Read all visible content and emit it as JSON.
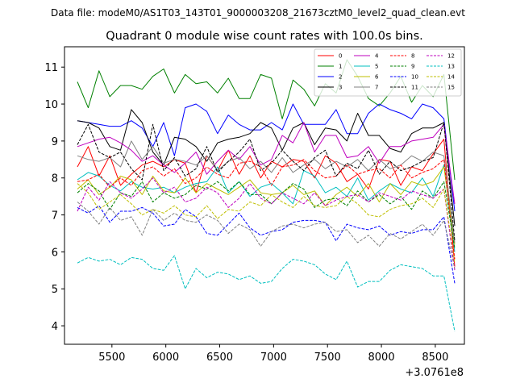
{
  "chart_data": {
    "type": "line",
    "suptitle": "Data file: modeM0/AS1T03_143T01_9000003208_21673cztM0_level2_quad_clean.evt",
    "title": "Quadrant 0 module wise count rates with 100.0s bins.",
    "xlabel": "",
    "ylabel": "",
    "x_offset_label": "+3.0761e8",
    "xlim": [
      5060,
      8770
    ],
    "ylim": [
      3.5,
      11.55
    ],
    "x_ticks": [
      5500,
      6000,
      6500,
      7000,
      7500,
      8000,
      8500
    ],
    "y_ticks": [
      4,
      5,
      6,
      7,
      8,
      9,
      10,
      11
    ],
    "x": [
      5180,
      5280,
      5380,
      5480,
      5580,
      5680,
      5780,
      5880,
      5980,
      6080,
      6180,
      6280,
      6380,
      6480,
      6580,
      6680,
      6780,
      6880,
      6980,
      7080,
      7180,
      7280,
      7380,
      7480,
      7580,
      7680,
      7780,
      7880,
      7980,
      8080,
      8180,
      8280,
      8380,
      8480,
      8580,
      8680
    ],
    "legend_location": "upper right",
    "series": [
      {
        "name": "0",
        "color": "#ff0000",
        "dash": "solid",
        "values": [
          8.3,
          8.85,
          8.05,
          8.6,
          7.8,
          8.1,
          8.35,
          8.45,
          8.3,
          8.5,
          8.4,
          7.6,
          8.6,
          8.2,
          8.75,
          8.1,
          8.6,
          8.0,
          8.45,
          8.3,
          8.5,
          8.45,
          8.0,
          8.6,
          8.4,
          7.9,
          8.1,
          7.7,
          8.5,
          8.45,
          7.8,
          8.3,
          8.2,
          8.65,
          9.05,
          5.6
        ]
      },
      {
        "name": "1",
        "color": "#008000",
        "dash": "solid",
        "values": [
          10.6,
          9.9,
          10.9,
          10.2,
          10.5,
          10.5,
          10.4,
          10.75,
          10.95,
          10.3,
          10.8,
          10.55,
          10.6,
          10.3,
          10.7,
          10.15,
          10.15,
          10.8,
          10.7,
          9.6,
          10.65,
          10.4,
          9.95,
          10.55,
          10.3,
          11.2,
          10.75,
          10.15,
          9.95,
          10.3,
          10.75,
          10.05,
          10.5,
          10.2,
          10.8,
          7.95
        ]
      },
      {
        "name": "2",
        "color": "#0000ff",
        "dash": "solid",
        "values": [
          9.55,
          9.5,
          9.45,
          9.4,
          9.4,
          9.55,
          9.35,
          8.85,
          9.5,
          8.6,
          9.9,
          10.0,
          9.8,
          9.2,
          9.7,
          9.45,
          9.3,
          9.3,
          9.5,
          9.3,
          10.0,
          9.45,
          9.45,
          9.45,
          9.85,
          9.2,
          9.2,
          9.75,
          10.0,
          9.85,
          9.75,
          9.6,
          10.0,
          9.9,
          9.6,
          7.1
        ]
      },
      {
        "name": "3",
        "color": "#000000",
        "dash": "solid",
        "values": [
          9.55,
          9.5,
          9.35,
          8.85,
          8.75,
          9.85,
          9.5,
          8.7,
          8.35,
          9.1,
          9.05,
          8.85,
          8.45,
          8.95,
          9.05,
          9.1,
          9.2,
          9.5,
          9.35,
          8.75,
          9.35,
          9.5,
          8.9,
          9.35,
          9.3,
          9.0,
          9.75,
          9.15,
          9.15,
          8.8,
          8.7,
          9.2,
          9.35,
          9.35,
          9.5,
          6.7
        ]
      },
      {
        "name": "4",
        "color": "#bf00bf",
        "dash": "solid",
        "values": [
          8.85,
          8.95,
          9.05,
          9.1,
          8.95,
          8.75,
          8.45,
          8.6,
          8.35,
          8.15,
          8.4,
          8.7,
          8.1,
          8.45,
          8.75,
          8.5,
          8.85,
          8.35,
          8.5,
          9.15,
          8.95,
          9.5,
          8.7,
          9.15,
          9.15,
          8.55,
          8.6,
          8.85,
          8.4,
          8.85,
          8.85,
          9.0,
          9.05,
          9.1,
          9.45,
          7.3
        ]
      },
      {
        "name": "5",
        "color": "#00bfbf",
        "dash": "solid",
        "values": [
          7.95,
          8.15,
          8.05,
          7.8,
          7.65,
          7.9,
          7.75,
          7.7,
          7.75,
          7.6,
          7.75,
          7.85,
          7.9,
          8.3,
          7.6,
          7.9,
          7.5,
          7.75,
          7.85,
          7.6,
          7.3,
          8.2,
          8.05,
          7.6,
          7.75,
          7.5,
          8.0,
          7.4,
          7.65,
          7.85,
          7.7,
          7.6,
          8.0,
          7.5,
          8.35,
          6.0
        ]
      },
      {
        "name": "6",
        "color": "#bfbf00",
        "dash": "solid",
        "values": [
          7.7,
          7.95,
          7.55,
          7.75,
          8.05,
          7.95,
          7.55,
          8.05,
          7.65,
          7.6,
          8.0,
          7.6,
          7.85,
          7.7,
          7.55,
          7.75,
          7.95,
          7.6,
          7.55,
          7.6,
          7.8,
          7.55,
          7.65,
          7.25,
          7.55,
          7.75,
          7.5,
          7.85,
          7.35,
          7.85,
          7.55,
          7.9,
          7.8,
          7.9,
          8.3,
          6.2
        ]
      },
      {
        "name": "7",
        "color": "#808080",
        "dash": "solid",
        "values": [
          8.6,
          8.5,
          8.45,
          8.55,
          8.3,
          9.0,
          8.5,
          8.85,
          8.4,
          8.5,
          8.45,
          8.35,
          8.6,
          8.2,
          8.45,
          8.55,
          8.25,
          8.45,
          8.15,
          8.55,
          8.15,
          8.35,
          8.5,
          8.25,
          8.45,
          8.3,
          8.5,
          8.2,
          8.5,
          8.25,
          8.35,
          8.6,
          8.45,
          8.7,
          8.6,
          6.25
        ]
      },
      {
        "name": "8",
        "color": "#ff0000",
        "dash": "dashed",
        "values": [
          7.9,
          7.95,
          8.1,
          7.75,
          8.0,
          7.8,
          8.2,
          8.3,
          8.05,
          8.25,
          7.85,
          8.0,
          8.3,
          8.1,
          8.0,
          8.4,
          8.45,
          8.3,
          7.8,
          8.3,
          8.35,
          8.5,
          8.2,
          8.0,
          8.05,
          8.35,
          8.1,
          8.2,
          8.25,
          8.0,
          8.35,
          8.0,
          8.15,
          8.25,
          8.5,
          5.8
        ]
      },
      {
        "name": "9",
        "color": "#008000",
        "dash": "dashed",
        "values": [
          7.6,
          7.85,
          7.65,
          7.15,
          7.6,
          7.5,
          7.9,
          7.35,
          7.6,
          7.45,
          7.55,
          7.8,
          7.7,
          7.9,
          7.65,
          7.9,
          7.55,
          7.55,
          7.3,
          7.6,
          7.85,
          7.7,
          7.2,
          7.4,
          7.45,
          7.25,
          7.65,
          7.35,
          7.55,
          7.3,
          7.5,
          7.15,
          7.65,
          7.45,
          7.9,
          6.1
        ]
      },
      {
        "name": "10",
        "color": "#0000ff",
        "dash": "dashed",
        "values": [
          7.2,
          7.05,
          7.25,
          6.8,
          7.1,
          7.1,
          7.2,
          7.05,
          6.7,
          6.75,
          7.15,
          6.95,
          6.5,
          6.45,
          6.75,
          7.05,
          6.65,
          6.45,
          6.55,
          6.6,
          6.8,
          6.85,
          6.85,
          6.8,
          6.3,
          6.75,
          6.65,
          6.6,
          6.7,
          6.45,
          6.55,
          6.5,
          6.6,
          6.6,
          6.95,
          5.15
        ]
      },
      {
        "name": "11",
        "color": "#000000",
        "dash": "dashed",
        "values": [
          8.9,
          9.45,
          8.7,
          8.55,
          8.7,
          8.25,
          7.95,
          9.45,
          8.2,
          8.55,
          8.05,
          8.25,
          8.85,
          8.15,
          8.45,
          8.7,
          9.05,
          8.2,
          8.4,
          8.75,
          8.45,
          8.2,
          8.55,
          8.75,
          8.05,
          8.4,
          8.25,
          8.75,
          8.1,
          8.45,
          8.2,
          8.3,
          8.45,
          8.55,
          9.5,
          6.3
        ]
      },
      {
        "name": "12",
        "color": "#bf00bf",
        "dash": "dashed",
        "values": [
          7.1,
          7.75,
          7.4,
          7.9,
          7.6,
          7.45,
          7.7,
          8.0,
          7.6,
          7.75,
          7.35,
          7.45,
          7.75,
          7.6,
          7.2,
          7.45,
          7.85,
          7.45,
          7.3,
          7.6,
          7.45,
          7.3,
          7.6,
          7.25,
          7.4,
          7.5,
          7.55,
          7.35,
          7.6,
          7.5,
          7.4,
          7.65,
          7.55,
          7.45,
          7.7,
          5.5
        ]
      },
      {
        "name": "13",
        "color": "#00bfbf",
        "dash": "dashed",
        "values": [
          5.7,
          5.85,
          5.75,
          5.8,
          5.65,
          5.85,
          5.8,
          5.55,
          5.5,
          5.9,
          5.0,
          5.55,
          5.3,
          5.45,
          5.4,
          5.25,
          5.35,
          5.15,
          5.2,
          5.55,
          5.8,
          5.75,
          5.65,
          5.4,
          5.25,
          5.75,
          5.05,
          5.2,
          5.2,
          5.5,
          5.65,
          5.6,
          5.55,
          5.35,
          5.35,
          3.85
        ]
      },
      {
        "name": "14",
        "color": "#bfbf00",
        "dash": "dashed",
        "values": [
          7.85,
          7.6,
          7.15,
          7.35,
          7.55,
          7.3,
          7.0,
          7.15,
          7.05,
          7.25,
          7.0,
          6.95,
          7.25,
          6.9,
          7.15,
          7.1,
          7.35,
          7.25,
          7.55,
          7.35,
          7.2,
          7.5,
          7.25,
          7.2,
          7.25,
          7.5,
          7.3,
          7.0,
          6.95,
          7.15,
          7.25,
          7.3,
          7.45,
          7.2,
          7.7,
          5.7
        ]
      },
      {
        "name": "15",
        "color": "#808080",
        "dash": "dashed",
        "values": [
          7.35,
          7.1,
          6.75,
          7.2,
          6.85,
          6.95,
          6.45,
          7.15,
          6.85,
          7.05,
          6.85,
          6.8,
          7.0,
          6.85,
          6.5,
          6.75,
          6.6,
          6.15,
          6.55,
          6.7,
          6.75,
          6.65,
          6.75,
          6.8,
          6.55,
          6.6,
          6.25,
          6.45,
          6.15,
          6.5,
          6.35,
          6.55,
          6.75,
          6.45,
          6.85,
          5.55
        ]
      }
    ]
  }
}
